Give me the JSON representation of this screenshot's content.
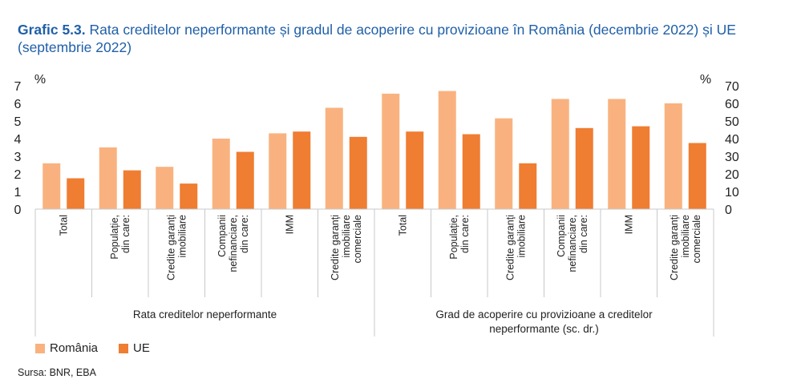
{
  "title": {
    "lead": "Grafic 5.3.",
    "text": "Rata creditelor neperformante și gradul de acoperire cu provizioane în România (decembrie 2022) și UE (septembrie 2022)"
  },
  "source": "Sursa: BNR, EBA",
  "colors": {
    "romania": "#f9b27f",
    "ue": "#ef7d32",
    "grid": "#c8c8c8"
  },
  "chart_data": {
    "type": "bar",
    "left_axis": {
      "unit": "%",
      "ylim": [
        0,
        7
      ],
      "ticks": [
        "0",
        "1",
        "2",
        "3",
        "4",
        "5",
        "6",
        "7"
      ]
    },
    "right_axis": {
      "unit": "%",
      "ylim": [
        0,
        70
      ],
      "ticks": [
        "0",
        "10",
        "20",
        "30",
        "40",
        "50",
        "60",
        "70"
      ]
    },
    "groups": [
      {
        "label": "Rata creditelor neperformante",
        "axis": "left",
        "categories": [
          [
            "Total"
          ],
          [
            "Populație,",
            "din care:"
          ],
          [
            "Credite garanți",
            "imobiliare"
          ],
          [
            "Companii",
            "nefinanciare,",
            "din care:"
          ],
          [
            "IMM"
          ],
          [
            "Credite garanți",
            "imobiliare",
            "comerciale"
          ]
        ]
      },
      {
        "label": "Grad de acoperire cu provizioane a creditelor neperformante (sc. dr.)",
        "axis": "right",
        "categories": [
          [
            "Total"
          ],
          [
            "Populație,",
            "din care:"
          ],
          [
            "Credite garanți",
            "imobiliare"
          ],
          [
            "Companii",
            "nefinanciare,",
            "din care:"
          ],
          [
            "IMM"
          ],
          [
            "Credite garanți",
            "imobiliare",
            "comerciale"
          ]
        ]
      }
    ],
    "series": [
      {
        "name": "România",
        "values": [
          2.6,
          3.5,
          2.4,
          4.0,
          4.3,
          5.75,
          65.5,
          67,
          51.5,
          62.5,
          62.5,
          60
        ]
      },
      {
        "name": "UE",
        "values": [
          1.75,
          2.2,
          1.45,
          3.25,
          4.4,
          4.1,
          44,
          42.5,
          26,
          46,
          47,
          37.5
        ]
      }
    ],
    "legend_position": "bottom-left"
  }
}
